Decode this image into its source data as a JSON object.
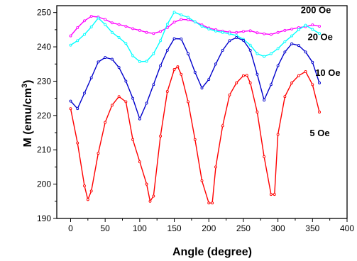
{
  "chart_data": {
    "type": "line",
    "xlabel": "Angle (degree)",
    "ylabel_main": "M (emu/cm",
    "ylabel_sup": "3",
    "ylabel_end": ")",
    "xlim": [
      -20,
      400
    ],
    "ylim": [
      190,
      252
    ],
    "xticks": [
      0,
      50,
      100,
      150,
      200,
      250,
      300,
      350,
      400
    ],
    "yticks": [
      190,
      200,
      210,
      220,
      230,
      240,
      250
    ],
    "grid": false,
    "series": [
      {
        "name": "200 Oe",
        "color": "#ff00ff",
        "label_at": [
          333,
          249.8
        ],
        "x": [
          0,
          10,
          20,
          30,
          40,
          50,
          60,
          70,
          80,
          90,
          100,
          110,
          120,
          130,
          140,
          150,
          160,
          170,
          180,
          190,
          200,
          210,
          220,
          230,
          240,
          250,
          260,
          270,
          280,
          290,
          300,
          310,
          320,
          330,
          340,
          350,
          360
        ],
        "y": [
          243.2,
          245.6,
          247.6,
          248.9,
          248.7,
          248.0,
          247.0,
          246.5,
          246.0,
          245.3,
          244.8,
          244.2,
          243.9,
          244.5,
          245.6,
          247.2,
          248.0,
          247.9,
          247.3,
          246.4,
          245.5,
          245.0,
          244.6,
          244.3,
          244.2,
          244.5,
          244.7,
          244.1,
          243.8,
          243.6,
          244.2,
          244.8,
          245.2,
          245.6,
          245.9,
          246.4,
          246.0
        ]
      },
      {
        "name": "20 Oe",
        "color": "#00ffff",
        "label_at": [
          343,
          242
        ],
        "x": [
          0,
          10,
          20,
          30,
          40,
          50,
          60,
          70,
          80,
          90,
          100,
          110,
          120,
          130,
          140,
          150,
          160,
          170,
          180,
          190,
          200,
          210,
          220,
          230,
          240,
          250,
          260,
          270,
          280,
          290,
          300,
          310,
          320,
          330,
          340,
          350,
          360
        ],
        "y": [
          240.5,
          241.8,
          243.6,
          245.8,
          248.4,
          246.5,
          244.2,
          242.7,
          241.0,
          237.4,
          235.7,
          235.8,
          238.0,
          241.8,
          246.6,
          250.1,
          249.3,
          248.6,
          247.3,
          246.0,
          245.2,
          244.6,
          244.2,
          243.8,
          243.3,
          242.2,
          240.5,
          238.0,
          237.2,
          238.0,
          239.5,
          241.5,
          243.2,
          245.0,
          246.3,
          245.1,
          243.9
        ]
      },
      {
        "name": "10 Oe",
        "color": "#0000cc",
        "label_at": [
          354,
          231.5
        ],
        "x": [
          0,
          10,
          20,
          30,
          40,
          50,
          60,
          70,
          80,
          90,
          100,
          110,
          120,
          130,
          140,
          150,
          160,
          170,
          180,
          190,
          200,
          210,
          220,
          230,
          240,
          250,
          260,
          270,
          280,
          290,
          300,
          310,
          320,
          330,
          340,
          350,
          360
        ],
        "y": [
          224.2,
          222.0,
          226.5,
          231.0,
          235.6,
          236.9,
          236.4,
          234.0,
          230.0,
          225.0,
          219.0,
          223.6,
          229.0,
          234.5,
          239.0,
          242.4,
          242.3,
          238.0,
          232.6,
          228.0,
          230.5,
          235.0,
          239.0,
          241.8,
          242.7,
          241.9,
          239.0,
          232.0,
          224.5,
          229.0,
          234.5,
          238.5,
          240.9,
          240.4,
          238.5,
          235.5,
          229.5
        ]
      },
      {
        "name": "5 Oe",
        "color": "#ff0000",
        "label_at": [
          346,
          214
        ],
        "x": [
          0,
          10,
          20,
          25,
          30,
          40,
          50,
          60,
          70,
          80,
          90,
          100,
          110,
          115,
          120,
          130,
          140,
          150,
          155,
          160,
          170,
          180,
          190,
          200,
          205,
          210,
          220,
          230,
          240,
          250,
          255,
          260,
          270,
          280,
          290,
          295,
          300,
          310,
          320,
          330,
          340,
          350,
          360
        ],
        "y": [
          222.0,
          212.0,
          199.5,
          195.5,
          198.0,
          209.0,
          218.0,
          223.0,
          225.5,
          224.0,
          213.0,
          206.5,
          200.0,
          195.0,
          196.5,
          214.0,
          227.0,
          233.4,
          234.2,
          232.0,
          224.0,
          213.0,
          201.0,
          194.5,
          194.5,
          205.0,
          217.0,
          226.0,
          229.5,
          231.6,
          231.7,
          229.5,
          221.0,
          208.0,
          197.0,
          197.0,
          214.5,
          225.5,
          229.5,
          231.6,
          232.8,
          229.0,
          221.0
        ]
      }
    ]
  }
}
